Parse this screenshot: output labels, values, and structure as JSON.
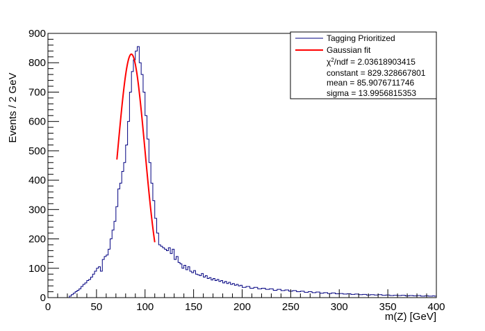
{
  "chart_data": {
    "type": "histogram-with-fit",
    "xlabel": "m(Z) [GeV]",
    "ylabel": "Events / 2 GeV",
    "xlim": [
      0,
      400
    ],
    "ylim": [
      0,
      900
    ],
    "x_ticks": [
      "0",
      "50",
      "100",
      "150",
      "200",
      "250",
      "300",
      "350",
      "400"
    ],
    "y_ticks": [
      "0",
      "100",
      "200",
      "300",
      "400",
      "500",
      "600",
      "700",
      "800",
      "900"
    ],
    "grid": false,
    "legend_position": "top-right",
    "bin_width": 2,
    "series": [
      {
        "name": "Tagging Prioritized",
        "kind": "histogram",
        "color": "#000080",
        "points": [
          [
            22,
            5
          ],
          [
            24,
            10
          ],
          [
            26,
            15
          ],
          [
            28,
            20
          ],
          [
            30,
            25
          ],
          [
            32,
            30
          ],
          [
            34,
            38
          ],
          [
            36,
            45
          ],
          [
            38,
            50
          ],
          [
            40,
            58
          ],
          [
            42,
            62
          ],
          [
            44,
            70
          ],
          [
            46,
            80
          ],
          [
            48,
            90
          ],
          [
            50,
            100
          ],
          [
            52,
            105
          ],
          [
            54,
            90
          ],
          [
            56,
            130
          ],
          [
            58,
            140
          ],
          [
            60,
            145
          ],
          [
            62,
            165
          ],
          [
            64,
            200
          ],
          [
            66,
            230
          ],
          [
            68,
            260
          ],
          [
            70,
            310
          ],
          [
            72,
            370
          ],
          [
            74,
            390
          ],
          [
            76,
            430
          ],
          [
            78,
            460
          ],
          [
            80,
            520
          ],
          [
            82,
            600
          ],
          [
            84,
            700
          ],
          [
            86,
            770
          ],
          [
            88,
            810
          ],
          [
            90,
            840
          ],
          [
            92,
            855
          ],
          [
            94,
            800
          ],
          [
            96,
            760
          ],
          [
            98,
            700
          ],
          [
            100,
            620
          ],
          [
            102,
            540
          ],
          [
            104,
            460
          ],
          [
            106,
            390
          ],
          [
            108,
            330
          ],
          [
            110,
            270
          ],
          [
            112,
            220
          ],
          [
            114,
            180
          ],
          [
            116,
            175
          ],
          [
            118,
            170
          ],
          [
            120,
            165
          ],
          [
            122,
            160
          ],
          [
            124,
            170
          ],
          [
            126,
            150
          ],
          [
            128,
            165
          ],
          [
            130,
            130
          ],
          [
            132,
            140
          ],
          [
            134,
            120
          ],
          [
            136,
            115
          ],
          [
            138,
            100
          ],
          [
            140,
            110
          ],
          [
            142,
            95
          ],
          [
            144,
            105
          ],
          [
            146,
            90
          ],
          [
            148,
            85
          ],
          [
            150,
            92
          ],
          [
            152,
            80
          ],
          [
            154,
            78
          ],
          [
            156,
            75
          ],
          [
            158,
            82
          ],
          [
            160,
            70
          ],
          [
            162,
            75
          ],
          [
            164,
            65
          ],
          [
            166,
            68
          ],
          [
            168,
            60
          ],
          [
            170,
            65
          ],
          [
            172,
            58
          ],
          [
            174,
            62
          ],
          [
            176,
            55
          ],
          [
            178,
            58
          ],
          [
            180,
            50
          ],
          [
            182,
            55
          ],
          [
            184,
            48
          ],
          [
            186,
            52
          ],
          [
            188,
            45
          ],
          [
            190,
            48
          ],
          [
            192,
            42
          ],
          [
            194,
            45
          ],
          [
            196,
            40
          ],
          [
            198,
            42
          ],
          [
            200,
            35
          ],
          [
            204,
            38
          ],
          [
            208,
            32
          ],
          [
            212,
            35
          ],
          [
            216,
            30
          ],
          [
            220,
            32
          ],
          [
            224,
            28
          ],
          [
            228,
            30
          ],
          [
            232,
            25
          ],
          [
            236,
            28
          ],
          [
            240,
            24
          ],
          [
            244,
            26
          ],
          [
            248,
            22
          ],
          [
            252,
            24
          ],
          [
            256,
            20
          ],
          [
            260,
            22
          ],
          [
            264,
            18
          ],
          [
            268,
            20
          ],
          [
            272,
            17
          ],
          [
            276,
            19
          ],
          [
            280,
            15
          ],
          [
            284,
            17
          ],
          [
            288,
            14
          ],
          [
            292,
            16
          ],
          [
            296,
            13
          ],
          [
            300,
            14
          ],
          [
            304,
            12
          ],
          [
            308,
            13
          ],
          [
            312,
            11
          ],
          [
            316,
            12
          ],
          [
            320,
            10
          ],
          [
            324,
            11
          ],
          [
            328,
            9
          ],
          [
            332,
            10
          ],
          [
            336,
            9
          ],
          [
            340,
            10
          ],
          [
            344,
            8
          ],
          [
            348,
            9
          ],
          [
            352,
            7
          ],
          [
            356,
            8
          ],
          [
            360,
            7
          ],
          [
            364,
            8
          ],
          [
            368,
            6
          ],
          [
            372,
            7
          ],
          [
            376,
            6
          ],
          [
            380,
            7
          ],
          [
            384,
            5
          ],
          [
            388,
            6
          ],
          [
            392,
            5
          ],
          [
            396,
            6
          ],
          [
            398,
            5
          ]
        ]
      },
      {
        "name": "Gaussian fit",
        "kind": "function",
        "color": "#ff0000",
        "function": "gaussian",
        "range": [
          71,
          110
        ],
        "constant": 829.328667801,
        "mean": 85.9076711746,
        "sigma": 13.9956815353
      }
    ],
    "legend": {
      "entries": [
        {
          "label": "Tagging Prioritized",
          "color": "#000080"
        },
        {
          "label": "Gaussian fit",
          "color": "#ff0000"
        }
      ],
      "chi2_prefix": "χ",
      "chi2_sup": "2",
      "chi2_suffix": "/ndf = 2.03618903415",
      "constant_text": "constant = 829.328667801",
      "mean_text": "mean = 85.9076711746",
      "sigma_text": "sigma = 13.9956815353"
    }
  }
}
